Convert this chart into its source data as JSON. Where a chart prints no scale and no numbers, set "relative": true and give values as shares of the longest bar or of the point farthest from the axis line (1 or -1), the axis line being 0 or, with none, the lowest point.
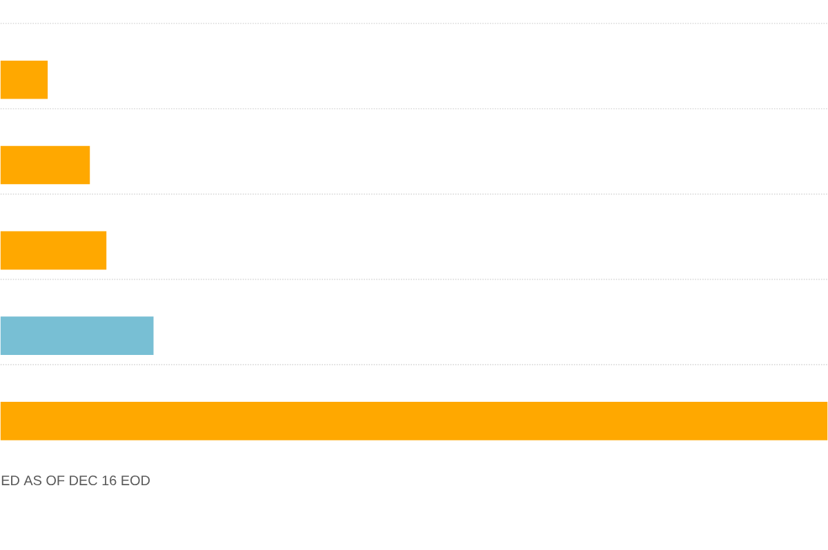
{
  "chart_data": {
    "type": "bar",
    "orientation": "horizontal",
    "relative": true,
    "grid": true,
    "categories": [
      null,
      null,
      null,
      null,
      null
    ],
    "values": [
      0.057,
      0.108,
      0.128,
      0.185,
      1
    ],
    "colors": [
      "#ffa800",
      "#ffa800",
      "#ffa800",
      "#78bfd4",
      "#ffa800"
    ],
    "annotations": [
      "ED AS OF DEC 16 EOD"
    ]
  }
}
